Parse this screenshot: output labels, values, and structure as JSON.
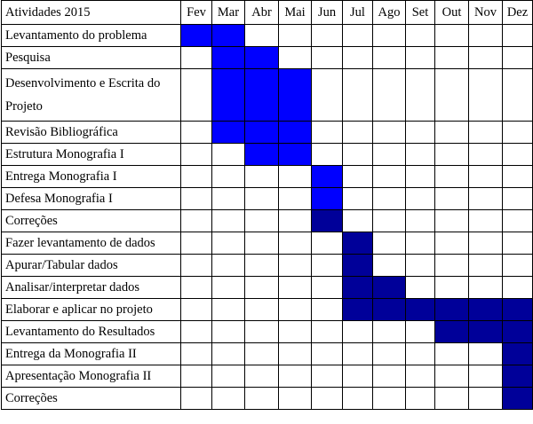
{
  "header": {
    "title": "Atividades 2015",
    "months": [
      "Fev",
      "Mar",
      "Abr",
      "Mai",
      "Jun",
      "Jul",
      "Ago",
      "Set",
      "Out",
      "Nov",
      "Dez"
    ]
  },
  "colors": {
    "bright_blue": "#0000ff",
    "dark_blue": "#000099",
    "grid": "#000000"
  },
  "rows": [
    {
      "activity": "Levantamento do problema",
      "fill": "bright_blue",
      "months": [
        "Fev",
        "Mar"
      ]
    },
    {
      "activity": "Pesquisa",
      "fill": "bright_blue",
      "months": [
        "Mar",
        "Abr"
      ]
    },
    {
      "activity": "Desenvolvimento e Escrita do Projeto",
      "fill": "bright_blue",
      "months": [
        "Mar",
        "Abr",
        "Mai"
      ]
    },
    {
      "activity": "Revisão Bibliográfica",
      "fill": "bright_blue",
      "months": [
        "Mar",
        "Abr",
        "Mai"
      ]
    },
    {
      "activity": "Estrutura  Monografia I",
      "fill": "bright_blue",
      "months": [
        "Abr",
        "Mai"
      ]
    },
    {
      "activity": "Entrega Monografia I",
      "fill": "bright_blue",
      "months": [
        "Jun"
      ]
    },
    {
      "activity": "Defesa Monografia I",
      "fill": "bright_blue",
      "months": [
        "Jun"
      ]
    },
    {
      "activity": "Correções",
      "fill": "dark_blue",
      "months": [
        "Jun"
      ]
    },
    {
      "activity": "Fazer levantamento de dados",
      "fill": "dark_blue",
      "months": [
        "Jul"
      ]
    },
    {
      "activity": "Apurar/Tabular dados",
      "fill": "dark_blue",
      "months": [
        "Jul"
      ]
    },
    {
      "activity": "Analisar/interpretar dados",
      "fill": "dark_blue",
      "months": [
        "Jul",
        "Ago"
      ]
    },
    {
      "activity": "Elaborar e aplicar no projeto",
      "fill": "dark_blue",
      "months": [
        "Jul",
        "Ago",
        "Set",
        "Out",
        "Nov",
        "Dez"
      ]
    },
    {
      "activity": "Levantamento do Resultados",
      "fill": "dark_blue",
      "months": [
        "Out",
        "Nov",
        "Dez"
      ]
    },
    {
      "activity": "Entrega da Monografia II",
      "fill": "dark_blue",
      "months": [
        "Dez"
      ]
    },
    {
      "activity": "Apresentação Monografia II",
      "fill": "dark_blue",
      "months": [
        "Dez"
      ]
    },
    {
      "activity": "Correções",
      "fill": "dark_blue",
      "months": [
        "Dez"
      ]
    }
  ]
}
